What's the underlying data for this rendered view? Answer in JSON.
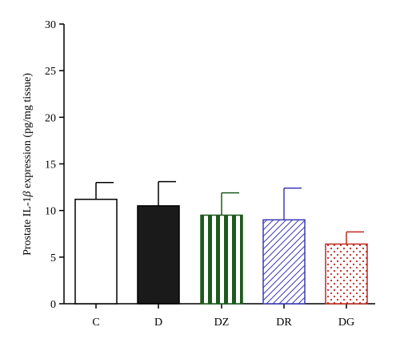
{
  "chart_data": {
    "type": "bar",
    "title": "",
    "xlabel": "",
    "ylabel": {
      "prefix": "Prostate IL-1",
      "symbol": "β",
      "suffix": " expression (pg/mg tissue)"
    },
    "ylim": [
      0,
      30
    ],
    "yticks": [
      "0",
      "5",
      "10",
      "15",
      "20",
      "25",
      "30"
    ],
    "categories": [
      "C",
      "D",
      "DZ",
      "DR",
      "DG"
    ],
    "values": [
      11.2,
      10.5,
      9.5,
      9.0,
      6.4
    ],
    "errors": [
      1.8,
      2.6,
      2.4,
      3.4,
      1.3
    ],
    "fills": [
      {
        "style": "open",
        "color": "#000000"
      },
      {
        "style": "solid",
        "color": "#1a1a1a"
      },
      {
        "style": "vertical-stripes",
        "color": "#1e5a1e"
      },
      {
        "style": "diagonal-hatch",
        "color": "#3c3cb4"
      },
      {
        "style": "dots",
        "color": "#c0281e"
      }
    ],
    "grid": false,
    "legend": "none"
  }
}
